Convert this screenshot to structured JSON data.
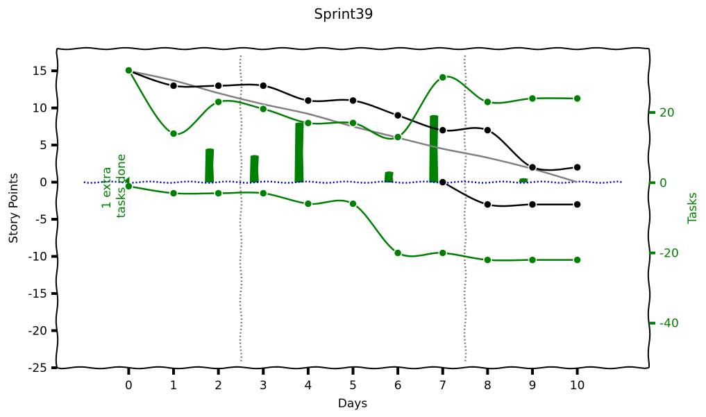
{
  "chart_data": {
    "type": "line",
    "title": "Sprint39",
    "xlabel": "Days",
    "ylabel": "Story Points",
    "y2label": "Tasks",
    "annotation": "1 extra\ntasks done",
    "xlim": [
      -1.6,
      11.6
    ],
    "ylim": [
      -25,
      18
    ],
    "y2lim": [
      -52.7,
      38.2
    ],
    "x_ticks": [
      0,
      1,
      2,
      3,
      4,
      5,
      6,
      7,
      8,
      9,
      10
    ],
    "y_ticks": [
      15,
      10,
      5,
      0,
      -5,
      -10,
      -15,
      -20,
      -25
    ],
    "y2_ticks": [
      20,
      0,
      -20,
      -40
    ],
    "grid": false,
    "colors": {
      "remaining": "#000000",
      "ideal": "#808080",
      "tasks": "#008000",
      "baseline": "#0000cc",
      "sprint_boundary": "#808080"
    },
    "series": [
      {
        "axis": "left",
        "color": "#808080",
        "marker": false,
        "x": [
          0,
          1,
          2,
          3,
          4,
          5,
          6,
          7,
          8,
          9,
          10
        ],
        "y": [
          15,
          13.7,
          12,
          10.5,
          9.2,
          7.5,
          6,
          4.5,
          3.3,
          1.8,
          0
        ]
      },
      {
        "axis": "left",
        "color": "#000000",
        "marker": true,
        "x": [
          0,
          1,
          2,
          3,
          4,
          5,
          6,
          7,
          8,
          9,
          10
        ],
        "y": [
          15,
          13,
          13,
          13,
          11,
          11,
          9,
          7,
          7,
          2,
          2
        ]
      },
      {
        "axis": "left",
        "color": "#000000",
        "marker": true,
        "x": [
          7,
          8,
          9,
          10
        ],
        "y": [
          0,
          -3,
          -3,
          -3
        ]
      },
      {
        "axis": "right",
        "color": "#008000",
        "marker": true,
        "x": [
          0,
          1,
          2,
          3,
          4,
          5,
          6,
          7,
          8,
          9,
          10
        ],
        "y": [
          32,
          14,
          23,
          21,
          17,
          17,
          13,
          30,
          23,
          24,
          24
        ]
      },
      {
        "axis": "right",
        "color": "#008000",
        "marker": true,
        "x": [
          0,
          1,
          2,
          3,
          4,
          5,
          6,
          7,
          8,
          9,
          10
        ],
        "y": [
          -1,
          -3,
          -3,
          -3,
          -6,
          -6,
          -20,
          -20,
          -22,
          -22,
          -22
        ]
      }
    ],
    "bars": {
      "axis": "left",
      "color": "#008000",
      "x": [
        1.8,
        2.8,
        3.8,
        5.8,
        6.8,
        8.8
      ],
      "values": [
        4.5,
        3.6,
        8,
        1.4,
        9,
        0.5
      ]
    },
    "baseline": {
      "axis": "left",
      "y": 0,
      "x": [
        -1,
        11
      ]
    },
    "vlines": [
      2.5,
      7.5
    ]
  }
}
